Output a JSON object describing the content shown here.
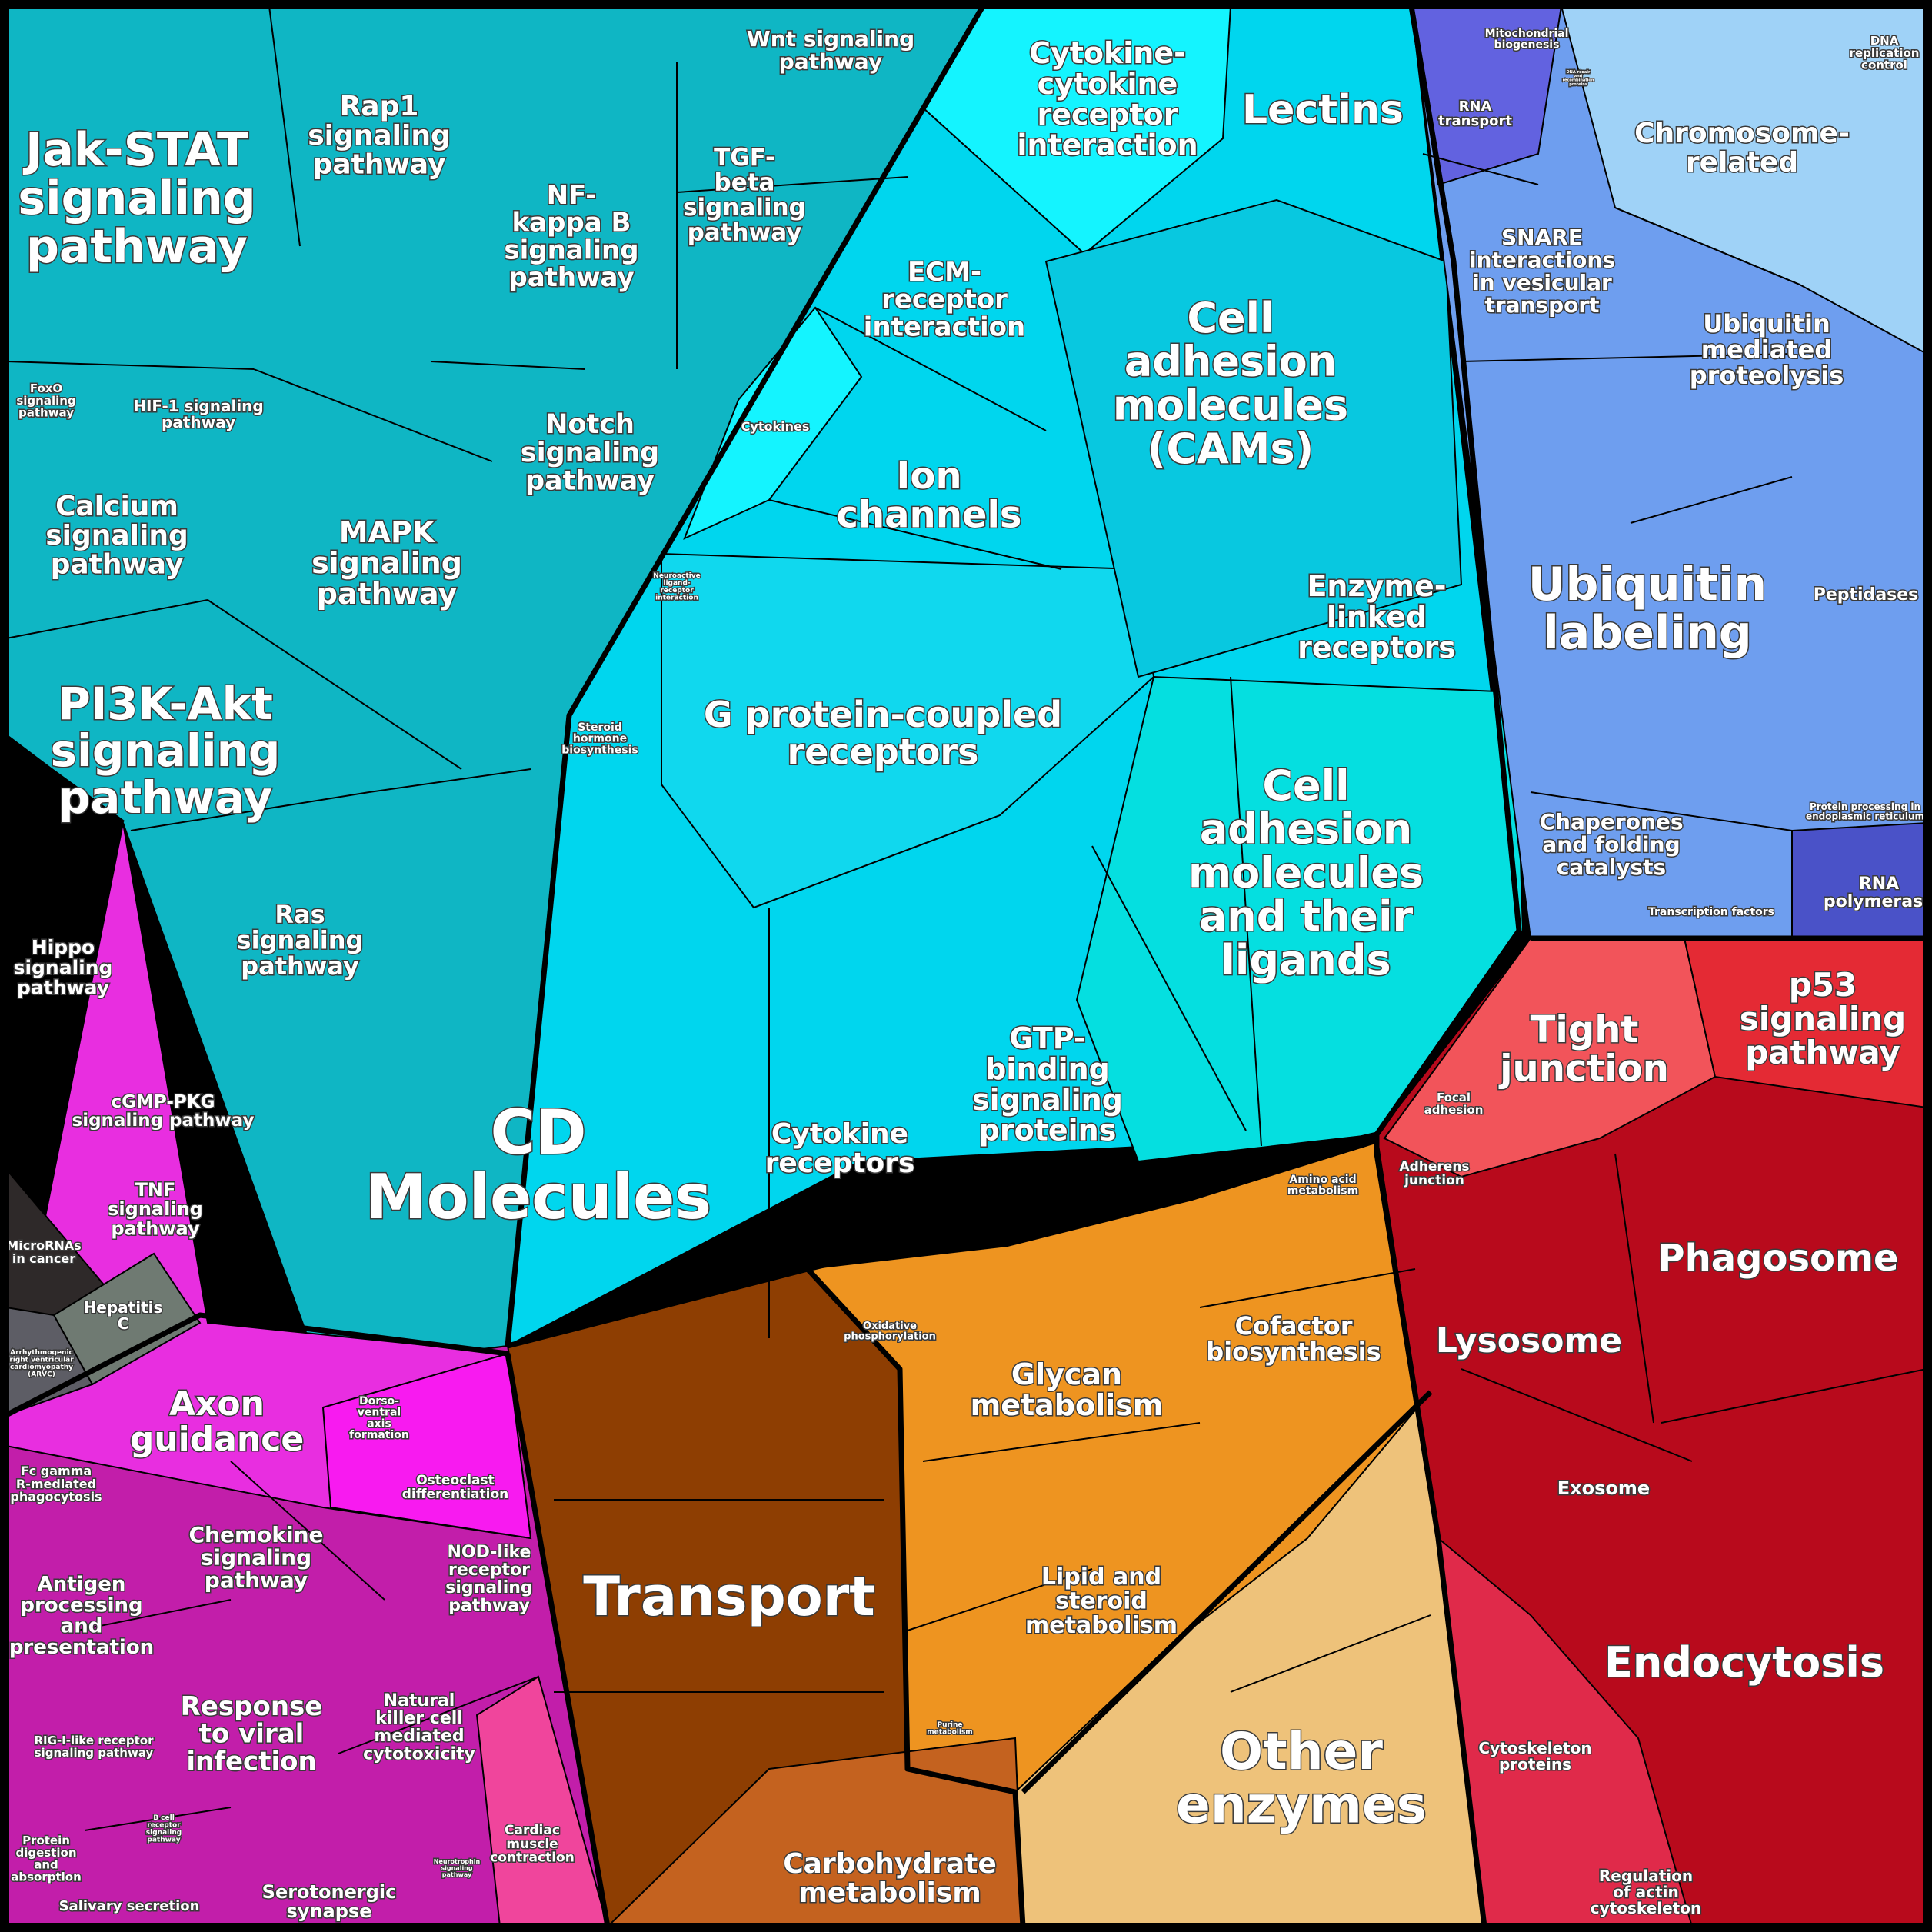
{
  "colors": {
    "border": "#000000",
    "signaling": "#0fb6c4",
    "receptors": "#00d6ee",
    "cytokine_light": "#14f4ff",
    "ubiquitin": "#6e9eef",
    "chromosome": "#9fd2f7",
    "rna_purple": "#6262e0",
    "transport": "#8e3e02",
    "metabolism": "#ee9420",
    "other_enzymes": "#eec27a",
    "lysosome_red": "#b80a1c",
    "tight_junction": "#f2545a",
    "immune_magenta": "#c21eaa",
    "axon_magenta": "#e82ee0",
    "dark_microrna": "#2e2929",
    "grey_hepatitis": "#6f7a72"
  },
  "regions": [
    {
      "id": "jak_stat",
      "lines": [
        "Jak-STAT",
        "signaling",
        "pathway"
      ]
    },
    {
      "id": "rap1",
      "lines": [
        "Rap1",
        "signaling",
        "pathway"
      ]
    },
    {
      "id": "nfkb",
      "lines": [
        "NF-",
        "kappa B",
        "signaling",
        "pathway"
      ]
    },
    {
      "id": "wnt",
      "lines": [
        "Wnt signaling",
        "pathway"
      ]
    },
    {
      "id": "tgf",
      "lines": [
        "TGF-",
        "beta",
        "signaling",
        "pathway"
      ]
    },
    {
      "id": "foxo",
      "lines": [
        "FoxO",
        "signaling",
        "pathway"
      ]
    },
    {
      "id": "hif1",
      "lines": [
        "HIF-1 signaling",
        "pathway"
      ]
    },
    {
      "id": "calcium",
      "lines": [
        "Calcium",
        "signaling",
        "pathway"
      ]
    },
    {
      "id": "mapk",
      "lines": [
        "MAPK",
        "signaling",
        "pathway"
      ]
    },
    {
      "id": "notch",
      "lines": [
        "Notch",
        "signaling",
        "pathway"
      ]
    },
    {
      "id": "pi3k",
      "lines": [
        "PI3K-Akt",
        "signaling",
        "pathway"
      ]
    },
    {
      "id": "ras",
      "lines": [
        "Ras",
        "signaling",
        "pathway"
      ]
    },
    {
      "id": "hippo",
      "lines": [
        "Hippo",
        "signaling",
        "pathway"
      ]
    },
    {
      "id": "cgmp",
      "lines": [
        "cGMP-PKG",
        "signaling pathway"
      ]
    },
    {
      "id": "tnf",
      "lines": [
        "TNF",
        "signaling",
        "pathway"
      ]
    },
    {
      "id": "microrna",
      "lines": [
        "MicroRNAs",
        "in cancer"
      ]
    },
    {
      "id": "hepatitis",
      "lines": [
        "Hepatitis",
        "C"
      ]
    },
    {
      "id": "arvc",
      "lines": [
        "Arrhythmogenic",
        "right ventricular",
        "cardiomyopathy",
        "(ARVC)"
      ]
    },
    {
      "id": "cytokine_cytokine",
      "lines": [
        "Cytokine-",
        "cytokine",
        "receptor",
        "interaction"
      ]
    },
    {
      "id": "lectins",
      "lines": [
        "Lectins"
      ]
    },
    {
      "id": "ecm",
      "lines": [
        "ECM-",
        "receptor",
        "interaction"
      ]
    },
    {
      "id": "cytokines",
      "lines": [
        "Cytokines"
      ]
    },
    {
      "id": "ion",
      "lines": [
        "Ion",
        "channels"
      ]
    },
    {
      "id": "cams",
      "lines": [
        "Cell",
        "adhesion",
        "molecules",
        "(CAMs)"
      ]
    },
    {
      "id": "neuroactive",
      "lines": [
        "Neuroactive",
        "ligand-",
        "receptor",
        "interaction"
      ]
    },
    {
      "id": "enzyme_linked",
      "lines": [
        "Enzyme-",
        "linked",
        "receptors"
      ]
    },
    {
      "id": "steroid_hormone",
      "lines": [
        "Steroid",
        "hormone",
        "biosynthesis"
      ]
    },
    {
      "id": "gpcr",
      "lines": [
        "G protein-coupled",
        "receptors"
      ]
    },
    {
      "id": "cell_adhesion_ligands",
      "lines": [
        "Cell",
        "adhesion",
        "molecules",
        "and their",
        "ligands"
      ]
    },
    {
      "id": "cd_molecules",
      "lines": [
        "CD",
        "Molecules"
      ]
    },
    {
      "id": "cytokine_receptors",
      "lines": [
        "Cytokine",
        "receptors"
      ]
    },
    {
      "id": "gtp",
      "lines": [
        "GTP-",
        "binding",
        "signaling",
        "proteins"
      ]
    },
    {
      "id": "mito",
      "lines": [
        "Mitochondrial",
        "biogenesis"
      ]
    },
    {
      "id": "rna_transport",
      "lines": [
        "RNA",
        "transport"
      ]
    },
    {
      "id": "dna_repair",
      "lines": [
        "DNA repair",
        "and",
        "recombination",
        "proteins"
      ]
    },
    {
      "id": "dna_replication",
      "lines": [
        "DNA",
        "replication",
        "control"
      ]
    },
    {
      "id": "chromosome",
      "lines": [
        "Chromosome-",
        "related"
      ]
    },
    {
      "id": "snare",
      "lines": [
        "SNARE",
        "interactions",
        "in vesicular",
        "transport"
      ]
    },
    {
      "id": "ubiquitin_prot",
      "lines": [
        "Ubiquitin",
        "mediated",
        "proteolysis"
      ]
    },
    {
      "id": "ubiquitin_labeling",
      "lines": [
        "Ubiquitin",
        "labeling"
      ]
    },
    {
      "id": "peptidases",
      "lines": [
        "Peptidases"
      ]
    },
    {
      "id": "chaperones",
      "lines": [
        "Chaperones",
        "and folding",
        "catalysts"
      ]
    },
    {
      "id": "protein_er",
      "lines": [
        "Protein processing in",
        "endoplasmic reticulum"
      ]
    },
    {
      "id": "transcription_factors",
      "lines": [
        "Transcription factors"
      ]
    },
    {
      "id": "rna_polymerase",
      "lines": [
        "RNA",
        "polymerase"
      ]
    },
    {
      "id": "tight_junction",
      "lines": [
        "Tight",
        "junction"
      ]
    },
    {
      "id": "p53",
      "lines": [
        "p53",
        "signaling",
        "pathway"
      ]
    },
    {
      "id": "focal_adhesion",
      "lines": [
        "Focal",
        "adhesion"
      ]
    },
    {
      "id": "adherens",
      "lines": [
        "Adherens",
        "junction"
      ]
    },
    {
      "id": "amino_acid",
      "lines": [
        "Amino acid",
        "metabolism"
      ]
    },
    {
      "id": "phagosome",
      "lines": [
        "Phagosome"
      ]
    },
    {
      "id": "lysosome",
      "lines": [
        "Lysosome"
      ]
    },
    {
      "id": "exosome",
      "lines": [
        "Exosome"
      ]
    },
    {
      "id": "endocytosis",
      "lines": [
        "Endocytosis"
      ]
    },
    {
      "id": "cytoskeleton",
      "lines": [
        "Cytoskeleton",
        "proteins"
      ]
    },
    {
      "id": "actin",
      "lines": [
        "Regulation",
        "of actin",
        "cytoskeleton"
      ]
    },
    {
      "id": "oxphos",
      "lines": [
        "Oxidative",
        "phosphorylation"
      ]
    },
    {
      "id": "cofactor",
      "lines": [
        "Cofactor",
        "biosynthesis"
      ]
    },
    {
      "id": "glycan",
      "lines": [
        "Glycan",
        "metabolism"
      ]
    },
    {
      "id": "lipid",
      "lines": [
        "Lipid and",
        "steroid",
        "metabolism"
      ]
    },
    {
      "id": "purine",
      "lines": [
        "Purine",
        "metabolism"
      ]
    },
    {
      "id": "transport",
      "lines": [
        "Transport"
      ]
    },
    {
      "id": "other_enzymes",
      "lines": [
        "Other",
        "enzymes"
      ]
    },
    {
      "id": "carbohydrate",
      "lines": [
        "Carbohydrate",
        "metabolism"
      ]
    },
    {
      "id": "axon",
      "lines": [
        "Axon",
        "guidance"
      ]
    },
    {
      "id": "dorso",
      "lines": [
        "Dorso-",
        "ventral",
        "axis",
        "formation"
      ]
    },
    {
      "id": "osteoclast",
      "lines": [
        "Osteoclast",
        "differentiation"
      ]
    },
    {
      "id": "fc_gamma",
      "lines": [
        "Fc gamma",
        "R-mediated",
        "phagocytosis"
      ]
    },
    {
      "id": "chemokine",
      "lines": [
        "Chemokine",
        "signaling",
        "pathway"
      ]
    },
    {
      "id": "nod",
      "lines": [
        "NOD-like",
        "receptor",
        "signaling",
        "pathway"
      ]
    },
    {
      "id": "antigen",
      "lines": [
        "Antigen",
        "processing",
        "and",
        "presentation"
      ]
    },
    {
      "id": "response_viral",
      "lines": [
        "Response",
        "to viral",
        "infection"
      ]
    },
    {
      "id": "nk",
      "lines": [
        "Natural",
        "killer cell",
        "mediated",
        "cytotoxicity"
      ]
    },
    {
      "id": "rig",
      "lines": [
        "RIG-I-like receptor",
        "signaling pathway"
      ]
    },
    {
      "id": "bcell",
      "lines": [
        "B cell",
        "receptor",
        "signaling",
        "pathway"
      ]
    },
    {
      "id": "protein_digestion",
      "lines": [
        "Protein",
        "digestion",
        "and",
        "absorption"
      ]
    },
    {
      "id": "salivary",
      "lines": [
        "Salivary secretion"
      ]
    },
    {
      "id": "serotonergic",
      "lines": [
        "Serotonergic",
        "synapse"
      ]
    },
    {
      "id": "neurotrophin",
      "lines": [
        "Neurotrophin",
        "signaling",
        "pathway"
      ]
    },
    {
      "id": "cardiac",
      "lines": [
        "Cardiac",
        "muscle",
        "contraction"
      ]
    }
  ]
}
